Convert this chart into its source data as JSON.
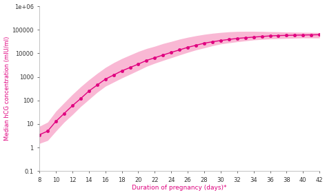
{
  "x": [
    8,
    9,
    10,
    11,
    12,
    13,
    14,
    15,
    16,
    17,
    18,
    19,
    20,
    21,
    22,
    23,
    24,
    25,
    26,
    27,
    28,
    29,
    30,
    31,
    32,
    33,
    34,
    35,
    36,
    37,
    38,
    39,
    40,
    41,
    42
  ],
  "median": [
    3.5,
    5,
    13,
    28,
    60,
    120,
    250,
    450,
    800,
    1200,
    1800,
    2500,
    3500,
    5000,
    6500,
    8500,
    11000,
    14000,
    18000,
    22000,
    27000,
    31000,
    35000,
    39000,
    43000,
    46000,
    49000,
    52000,
    55000,
    57000,
    58000,
    59000,
    60000,
    61000,
    62000
  ],
  "low": [
    1.5,
    2,
    5,
    12,
    25,
    55,
    110,
    220,
    400,
    600,
    900,
    1300,
    1900,
    2800,
    3800,
    5000,
    6500,
    8500,
    11000,
    14000,
    17000,
    21000,
    25000,
    28000,
    31000,
    34000,
    37000,
    39000,
    41000,
    42000,
    43000,
    44000,
    45000,
    45000,
    45000
  ],
  "high": [
    8,
    12,
    35,
    80,
    180,
    380,
    750,
    1400,
    2500,
    4000,
    6000,
    8500,
    12000,
    16000,
    20000,
    26000,
    32000,
    40000,
    48000,
    56000,
    64000,
    71000,
    77000,
    82000,
    85000,
    86000,
    86000,
    85000,
    83000,
    82000,
    80000,
    79000,
    78000,
    77000,
    76000
  ],
  "line_color": "#e0007f",
  "fill_color": "#f9b8d4",
  "ylabel": "Median hCG concentration (mIU/ml)",
  "xlabel": "Duration of pregnancy (days)*",
  "ylabel_color": "#e0007f",
  "xlabel_color": "#e0007f",
  "bg_color": "#ffffff",
  "ylim_low": 0.1,
  "ylim_high": 1000000,
  "xlim_low": 8,
  "xlim_high": 42
}
